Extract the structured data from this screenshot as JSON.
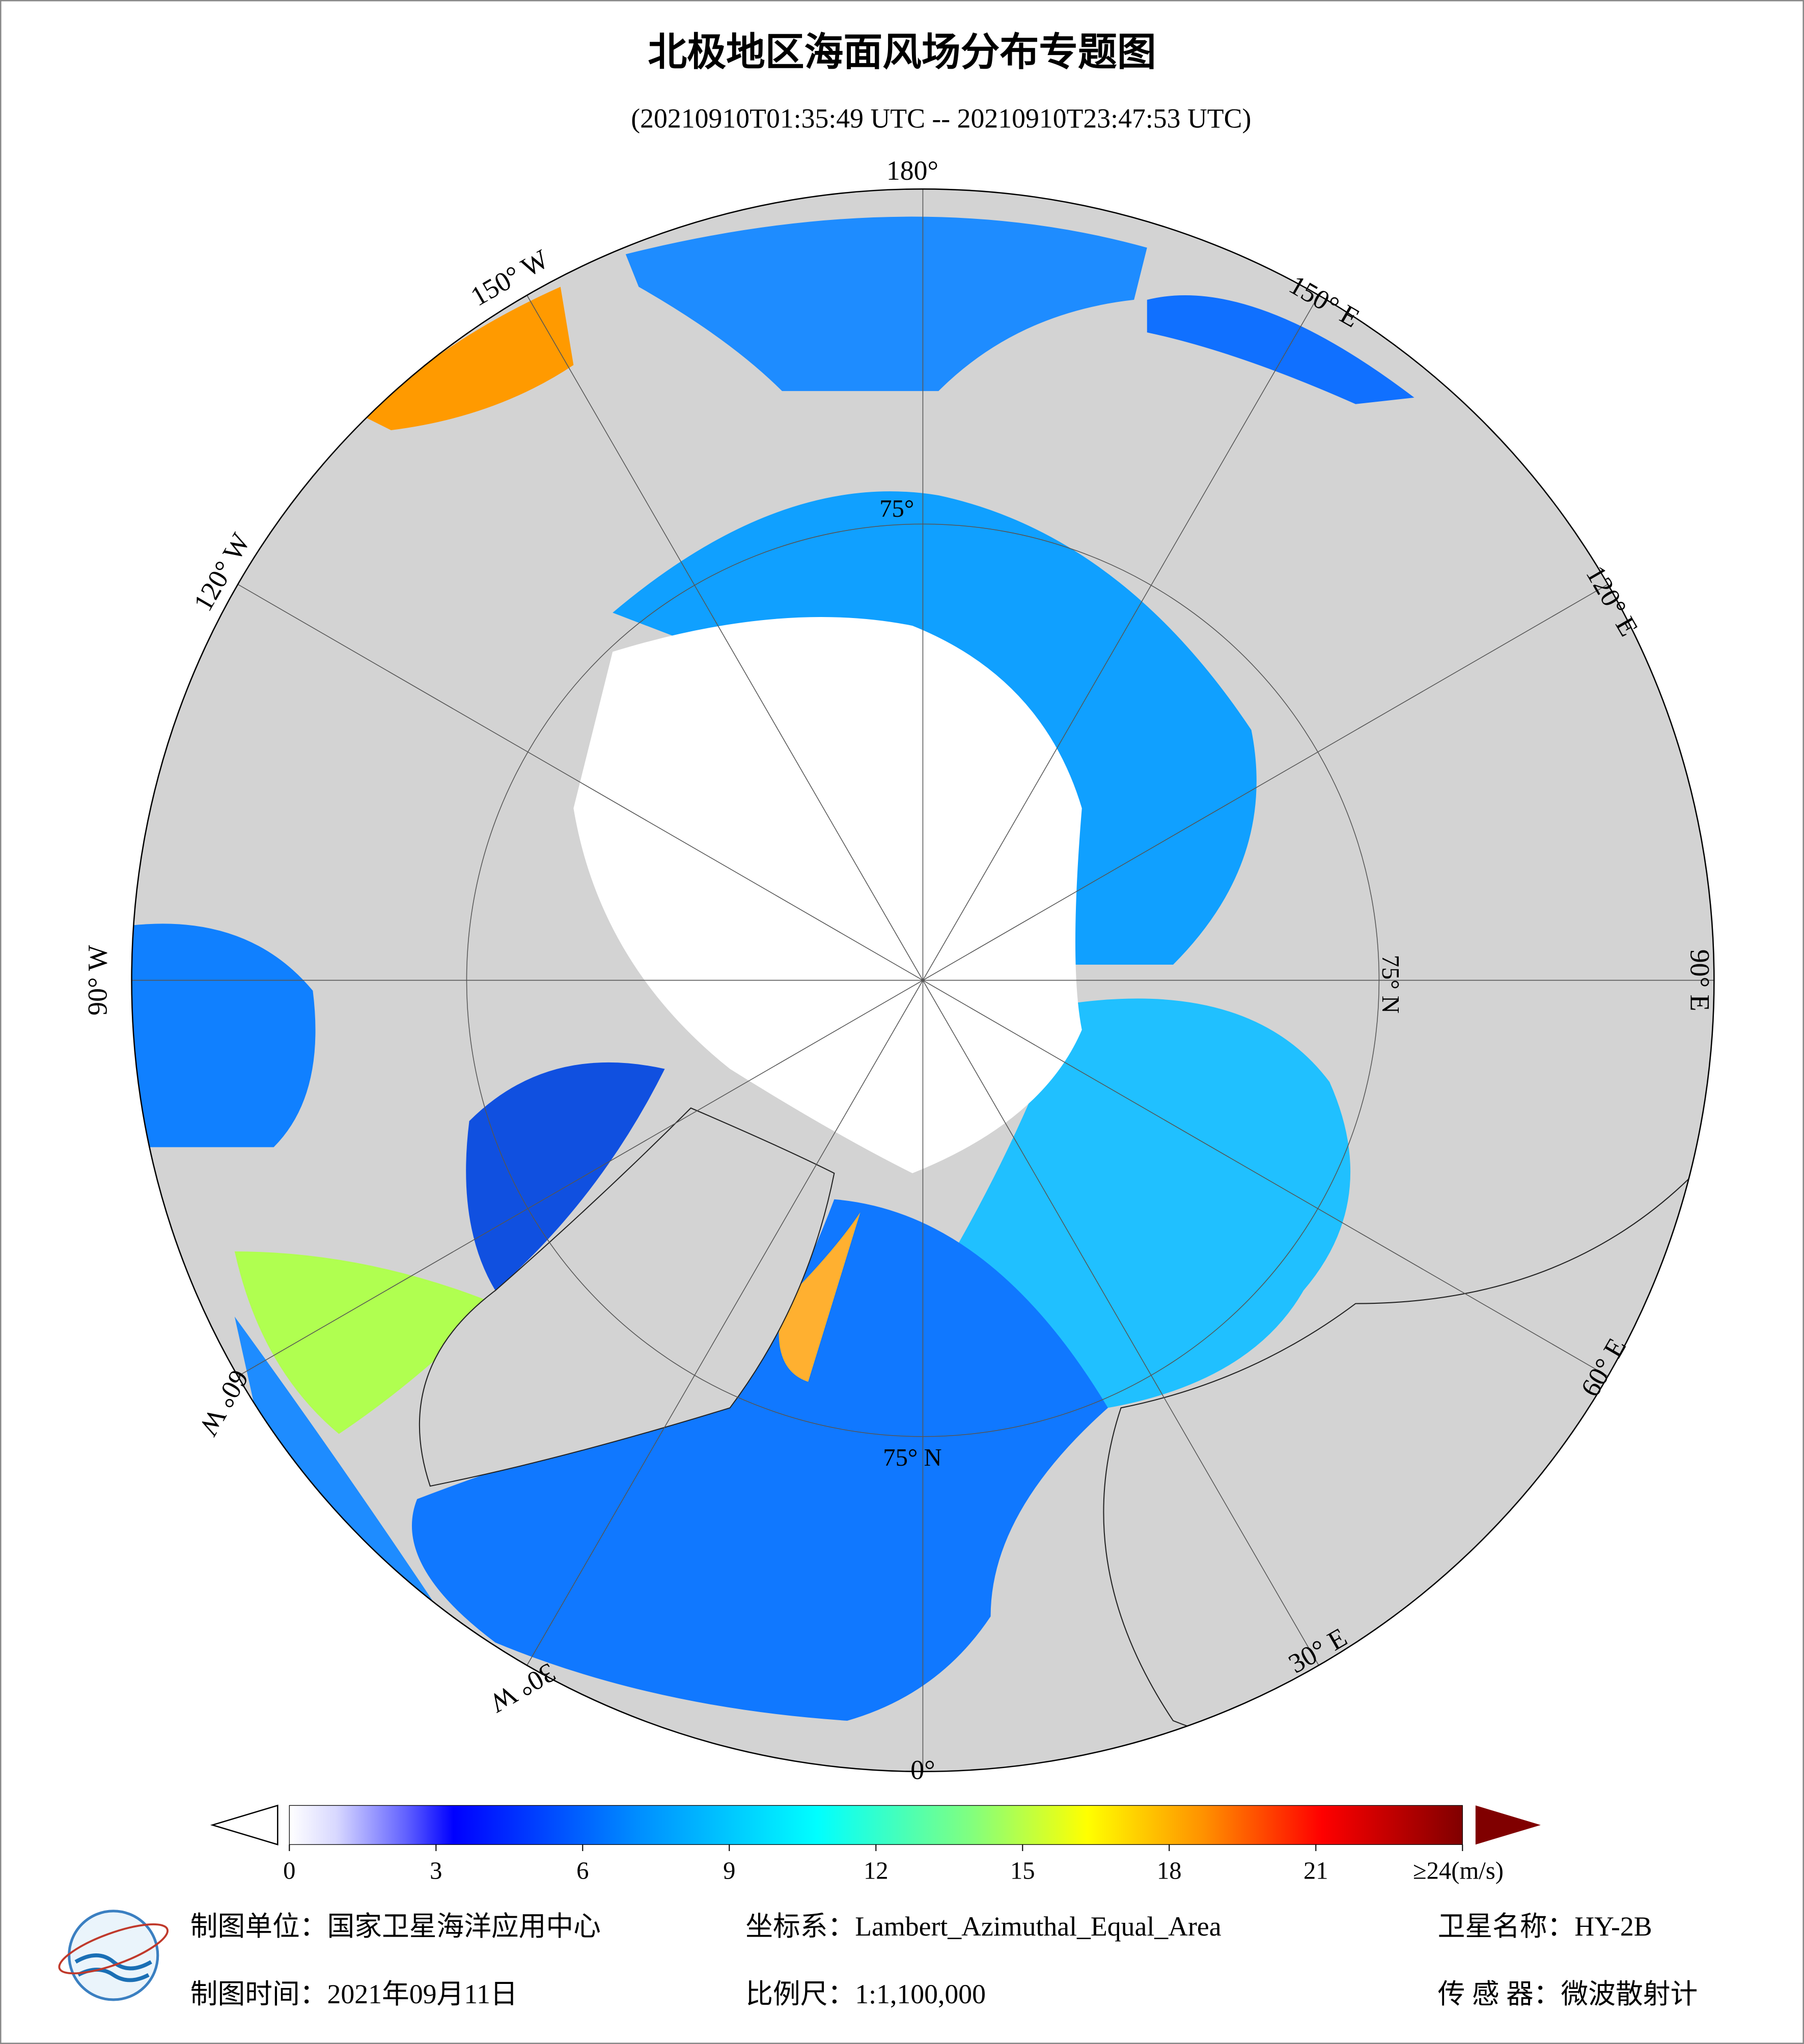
{
  "header": {
    "title": "北极地区海面风场分布专题图",
    "subtitle": "(20210910T01:35:49 UTC -- 20210910T23:47:53 UTC)"
  },
  "map": {
    "longitude_labels": [
      "180°",
      "150° W",
      "120° W",
      "90° W",
      "60° W",
      "30° W",
      "0°",
      "30° E",
      "60° E",
      "90° E",
      "120° E",
      "150° E"
    ],
    "latitude_labels": [
      "75°",
      "75° N",
      "75° N"
    ]
  },
  "colorbar": {
    "lim": [
      0,
      24
    ],
    "ticks": [
      0,
      3,
      6,
      9,
      12,
      15,
      18,
      21,
      {
        "value": 24,
        "label": "≥24(m/s)"
      }
    ]
  },
  "footer": {
    "producer": "制图单位：国家卫星海洋应用中心",
    "projection": "坐标系：Lambert_Azimuthal_Equal_Area",
    "satellite": "卫星名称：HY-2B",
    "date": "制图时间：2021年09月11日",
    "scale": "比例尺：1:1,100,000",
    "sensor": "传 感 器：微波散射计"
  }
}
